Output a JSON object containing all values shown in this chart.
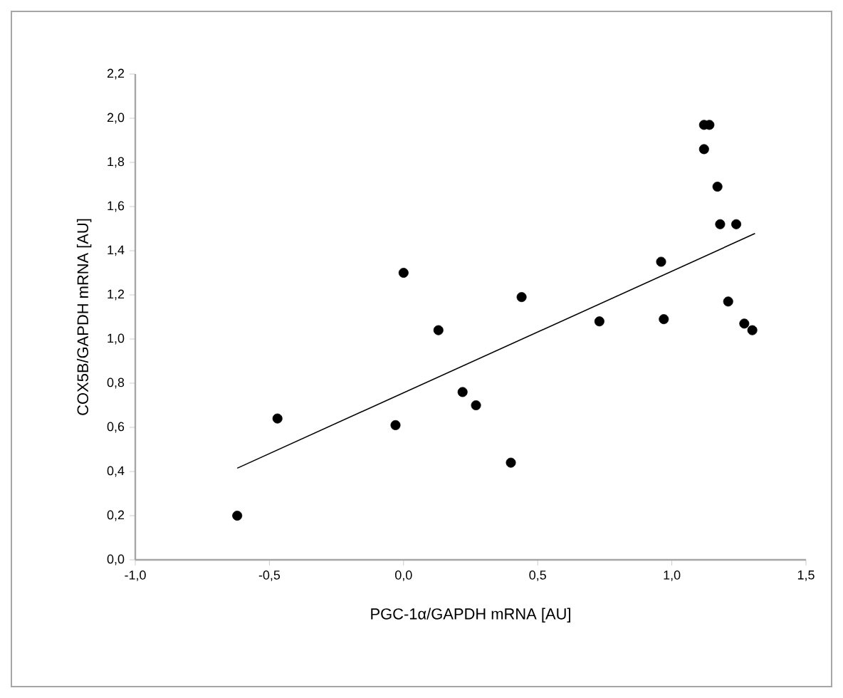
{
  "chart_data": {
    "type": "scatter",
    "xlabel": "PGC-1α/GAPDH mRNA [AU]",
    "ylabel": "COX5B/GAPDH mRNA [AU]",
    "xlim": [
      -1.0,
      1.5
    ],
    "ylim": [
      0.0,
      2.2
    ],
    "xticks": [
      {
        "value": -1.0,
        "label": "-1,0"
      },
      {
        "value": -0.5,
        "label": "-0,5"
      },
      {
        "value": 0.0,
        "label": "0,0"
      },
      {
        "value": 0.5,
        "label": "0,5"
      },
      {
        "value": 1.0,
        "label": "1,0"
      },
      {
        "value": 1.5,
        "label": "1,5"
      }
    ],
    "yticks": [
      {
        "value": 0.0,
        "label": "0,0"
      },
      {
        "value": 0.2,
        "label": "0,2"
      },
      {
        "value": 0.4,
        "label": "0,4"
      },
      {
        "value": 0.6,
        "label": "0,6"
      },
      {
        "value": 0.8,
        "label": "0,8"
      },
      {
        "value": 1.0,
        "label": "1,0"
      },
      {
        "value": 1.2,
        "label": "1,2"
      },
      {
        "value": 1.4,
        "label": "1,4"
      },
      {
        "value": 1.6,
        "label": "1,6"
      },
      {
        "value": 1.8,
        "label": "1,8"
      },
      {
        "value": 2.0,
        "label": "2,0"
      },
      {
        "value": 2.2,
        "label": "2,2"
      }
    ],
    "grid": false,
    "series": [
      {
        "color": "#000000",
        "marker": "circle",
        "x": [
          -0.62,
          -0.47,
          -0.03,
          0.0,
          0.13,
          0.22,
          0.27,
          0.4,
          0.44,
          0.73,
          0.96,
          0.97,
          1.12,
          1.14,
          1.12,
          1.17,
          1.18,
          1.24,
          1.21,
          1.27,
          1.3
        ],
        "values": [
          0.2,
          0.64,
          0.61,
          1.3,
          1.04,
          0.76,
          0.7,
          0.44,
          1.19,
          1.08,
          1.35,
          1.09,
          1.97,
          1.97,
          1.86,
          1.69,
          1.52,
          1.52,
          1.17,
          1.07,
          1.04
        ]
      },
      {
        "type": "line",
        "color": "#000000",
        "marker": "none",
        "line_style": "solid",
        "x": [
          -0.62,
          1.31
        ],
        "values": [
          0.415,
          1.478
        ]
      }
    ]
  }
}
